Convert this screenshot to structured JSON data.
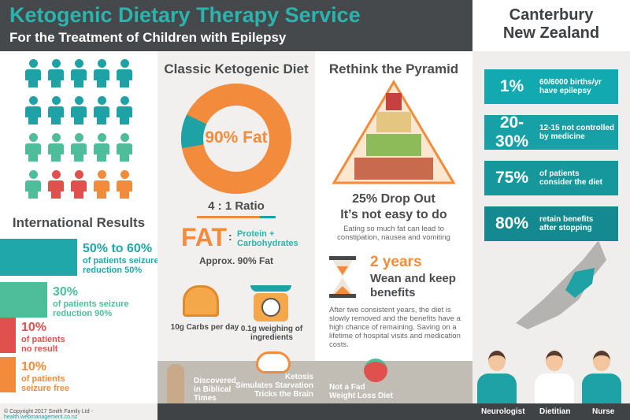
{
  "header": {
    "title": "Ketogenic Dietary Therapy Service",
    "subtitle": "For the Treatment of Children with Epilepsy",
    "region_line1": "Canterbury",
    "region_line2": "New Zealand"
  },
  "colors": {
    "teal": "#1fa2a6",
    "green": "#4dbd9a",
    "red": "#e0514d",
    "orange": "#f28c3c",
    "dark": "#46494c"
  },
  "international": {
    "heading": "International Results",
    "results": [
      {
        "value": "50% to 60%",
        "line1": "of patients seizure",
        "line2": "reduction 50%",
        "color": "#1fa7a9",
        "share": 0.55
      },
      {
        "value": "30%",
        "line1": "of patients seizure",
        "line2": "reduction 90%",
        "color": "#4dbd9a",
        "share": 0.3
      },
      {
        "value": "10%",
        "line1": "of patients",
        "line2": "no result",
        "color": "#e0514d",
        "share": 0.1
      },
      {
        "value": "10%",
        "line1": "of patients",
        "line2": "seizure free",
        "color": "#f28c3c",
        "share": 0.1
      }
    ]
  },
  "diet": {
    "heading": "Classic Ketogenic Diet",
    "donut_label": "90% Fat",
    "fat_fraction": 0.9,
    "ratio": "4 : 1 Ratio",
    "fat": "FAT",
    "colon": ":",
    "protein": "Protein +",
    "carbs": "Carbohydrates",
    "approx": "Approx. 90% Fat",
    "carbs_per_day": "10g Carbs per day",
    "weighing_line1": "0.1g weighing of",
    "weighing_line2": "ingredients"
  },
  "pyramid": {
    "heading": "Rethink the Pyramid",
    "dropout_line1": "25% Drop Out",
    "dropout_line2": "It’s not easy to do",
    "dropout_desc_line1": "Eating so much fat can lead to",
    "dropout_desc_line2": "constipation, nausea and vomiting",
    "years": "2 years",
    "wean_line1": "Wean and keep",
    "wean_line2": "benefits",
    "wean_desc": "After two consistent years, the diet is slowly removed and the benefits have a high chance of remaining. Saving on a lifetime of hospital visits and medication costs."
  },
  "stats": [
    {
      "value": "1%",
      "line1": "60/6000 births/yr",
      "line2": "have epilepsy"
    },
    {
      "value": "20-30%",
      "line1": "12-15 not controlled",
      "line2": "by medicine"
    },
    {
      "value": "75%",
      "line1": "of patients",
      "line2": "consider the diet"
    },
    {
      "value": "80%",
      "line1": "retain benefits",
      "line2": "after stopping"
    }
  ],
  "facts": [
    {
      "line1": "Discovered",
      "line2": "in Biblical",
      "line3": "Times"
    },
    {
      "line1": "Ketosis",
      "line2": "Simulates Starvation",
      "line3": "Tricks the Brain"
    },
    {
      "line1": "Not a Fad",
      "line2": "Weight Loss Diet"
    }
  ],
  "staff": [
    "Neurologist",
    "Dietitian",
    "Nurse"
  ],
  "footer": {
    "copyright": "© Copyright 2017 Smith Family Ltd - ",
    "link": "health.webmanagement.co.nz"
  }
}
